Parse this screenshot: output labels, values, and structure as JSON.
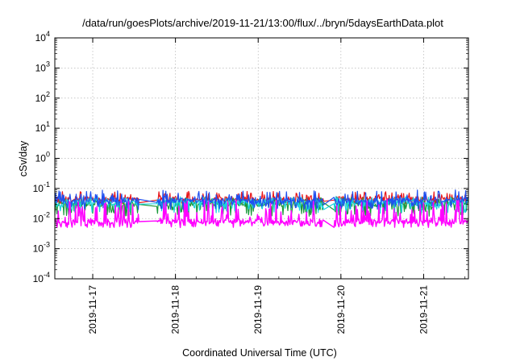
{
  "chart_data": {
    "type": "line",
    "title": "/data/run/goesPlots/archive/2019-11-21/13:00/flux/../bryn/5daysEarthData.plot",
    "xlabel": "Coordinated Universal Time (UTC)",
    "ylabel": "cSv/day",
    "yscale": "log",
    "ylim": [
      0.0001,
      10000
    ],
    "y_ticks": [
      {
        "base": "10",
        "exp": "4"
      },
      {
        "base": "10",
        "exp": "3"
      },
      {
        "base": "10",
        "exp": "2"
      },
      {
        "base": "10",
        "exp": "1"
      },
      {
        "base": "10",
        "exp": "0"
      },
      {
        "base": "10",
        "exp": "-1"
      },
      {
        "base": "10",
        "exp": "-2"
      },
      {
        "base": "10",
        "exp": "-3"
      },
      {
        "base": "10",
        "exp": "-4"
      }
    ],
    "xlim": [
      "2019-11-16 13:00",
      "2019-11-21 13:00"
    ],
    "x_ticks": [
      "2019-11-17",
      "2019-11-18",
      "2019-11-19",
      "2019-11-20",
      "2019-11-21"
    ],
    "grid": true,
    "data_gaps": [
      [
        "2019-11-17 13:30",
        "2019-11-17 18:30"
      ],
      [
        "2019-11-19 19:00",
        "2019-11-19 22:00"
      ]
    ],
    "series": [
      {
        "color": "#e8181c",
        "baseline": 0.045,
        "low": 0.03,
        "high": 0.08
      },
      {
        "color": "#1a9a3a",
        "baseline": 0.03,
        "low": 0.012,
        "high": 0.05
      },
      {
        "color": "#19d3e0",
        "baseline": 0.035,
        "low": 0.015,
        "high": 0.055
      },
      {
        "color": "#1f4ff0",
        "baseline": 0.04,
        "low": 0.02,
        "high": 0.09
      },
      {
        "color": "#ff00ff",
        "baseline": 0.008,
        "low": 0.005,
        "high": 0.045
      }
    ]
  }
}
